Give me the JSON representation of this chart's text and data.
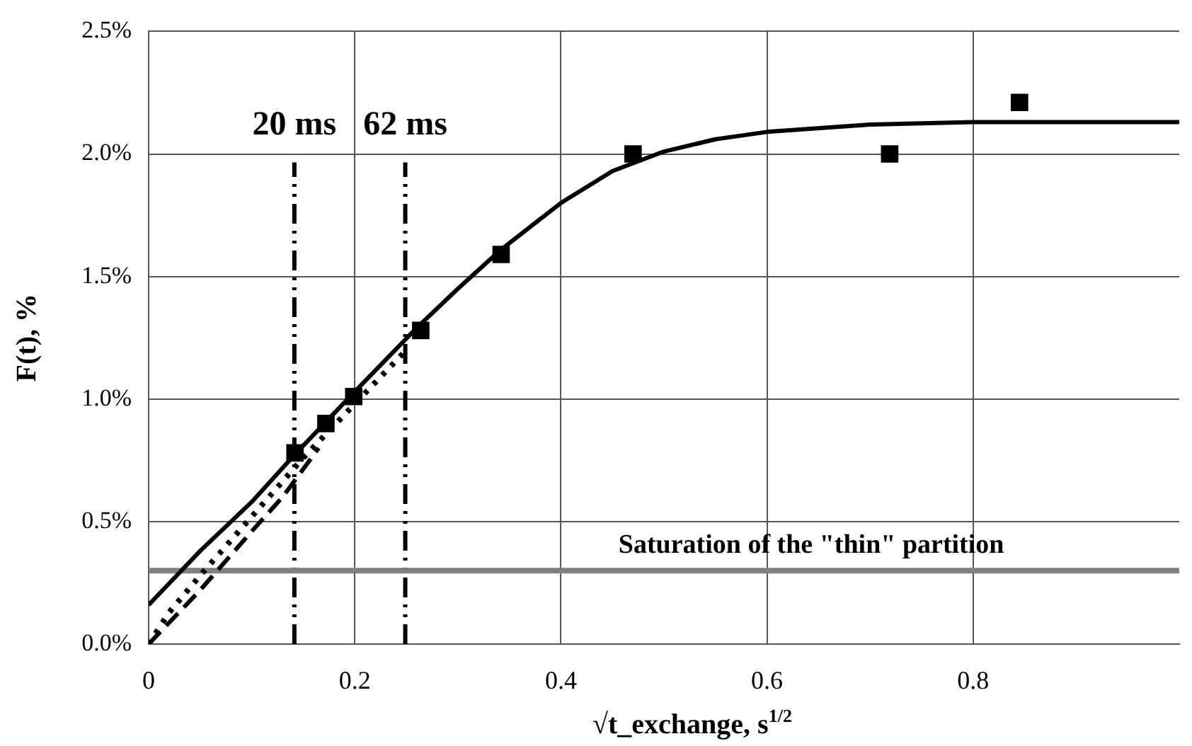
{
  "chart_data": {
    "type": "scatter",
    "xlabel": "√t_exchange, s$^{1/2}$",
    "ylabel": "F(t), %",
    "xlim": [
      0,
      1
    ],
    "xticks": [
      0,
      0.2,
      0.4,
      0.6,
      0.8
    ],
    "ylim": [
      0,
      2.5
    ],
    "yticks": [
      {
        "value": 0,
        "label": "0.0%"
      },
      {
        "value": 0.5,
        "label": "0.5%"
      },
      {
        "value": 1,
        "label": "1.0%"
      },
      {
        "value": 1.5,
        "label": "1.5%"
      },
      {
        "value": 2,
        "label": "2.0%"
      },
      {
        "value": 2.5,
        "label": "2.5%"
      }
    ],
    "grid": true,
    "legend": false,
    "series": [
      {
        "type": "line",
        "color": "#000000",
        "line_style": "solid",
        "marker": "none",
        "x": [
          0,
          0.05,
          0.1,
          0.141,
          0.2,
          0.26,
          0.3,
          0.342,
          0.4,
          0.45,
          0.5,
          0.55,
          0.6,
          0.7,
          0.8,
          1.0
        ],
        "values": [
          0.16,
          0.38,
          0.58,
          0.77,
          1.03,
          1.29,
          1.45,
          1.61,
          1.8,
          1.93,
          2.01,
          2.06,
          2.09,
          2.12,
          2.13,
          2.13
        ]
      },
      {
        "type": "line",
        "color": "#000000",
        "line_style": "dashed",
        "marker": "none",
        "x": [
          0,
          0.05,
          0.1,
          0.13,
          0.165
        ],
        "values": [
          0,
          0.22,
          0.46,
          0.6,
          0.8
        ]
      },
      {
        "type": "line",
        "color": "#000000",
        "line_style": "dotted",
        "marker": "none",
        "x": [
          0,
          0.02,
          0.05,
          0.1,
          0.15,
          0.2,
          0.25
        ],
        "values": [
          0,
          0.13,
          0.28,
          0.52,
          0.76,
          0.98,
          1.2
        ]
      },
      {
        "color": "#000000",
        "marker": "square",
        "x": [
          0.142,
          0.172,
          0.199,
          0.264,
          0.342,
          0.47,
          0.719,
          0.845
        ],
        "values": [
          0.78,
          0.9,
          1.01,
          1.28,
          1.59,
          2.0,
          2.0,
          2.21
        ]
      }
    ],
    "ref_lines": [
      {
        "axis": "x",
        "value": 0.1414,
        "label": "20 ms",
        "color": "#000000",
        "line_style": "dashed"
      },
      {
        "axis": "x",
        "value": 0.249,
        "label": "62 ms",
        "color": "#000000",
        "line_style": "dashed"
      },
      {
        "axis": "y",
        "value": 0.3,
        "label": "Saturation of the \"thin\" partition",
        "color": "#808080",
        "line_style": "solid"
      }
    ]
  }
}
